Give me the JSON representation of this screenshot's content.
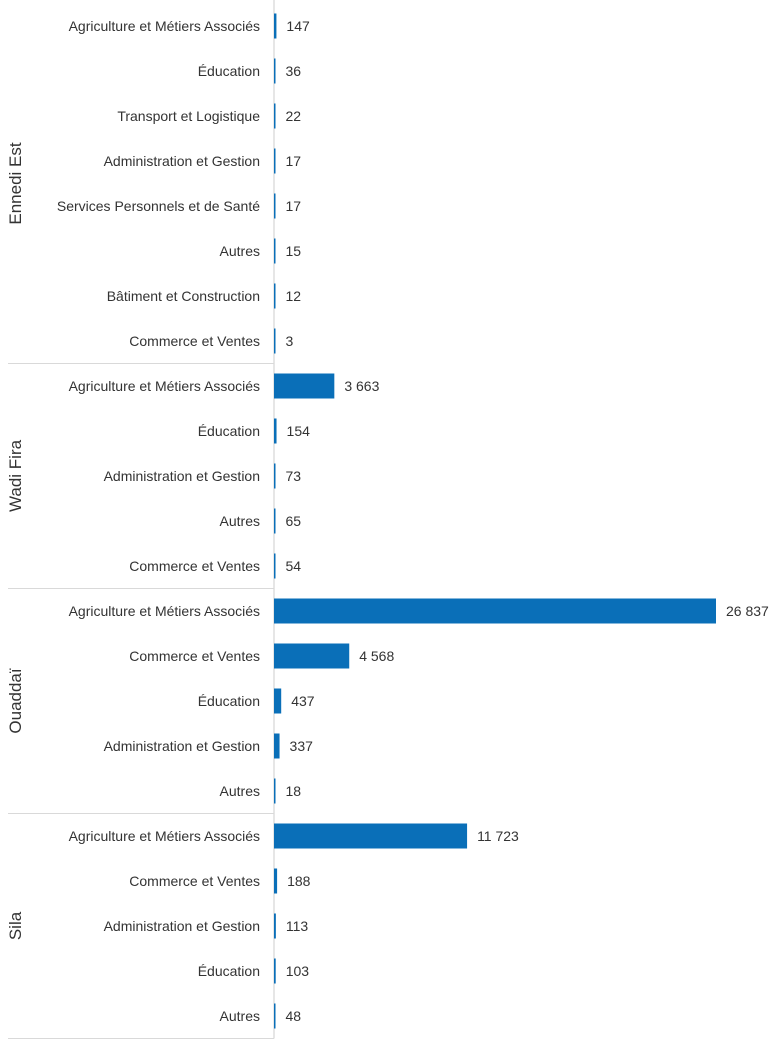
{
  "colors": {
    "bar": "#0a6fb8"
  },
  "chart_data": {
    "type": "bar",
    "orientation": "horizontal",
    "grid": false,
    "groups": [
      {
        "name": "Ennedi Est",
        "categories": [
          "Agriculture et Métiers Associés",
          "Éducation",
          "Transport et Logistique",
          "Administration et Gestion",
          "Services Personnels et de Santé",
          "Autres",
          "Bâtiment et Construction",
          "Commerce et Ventes"
        ],
        "values": [
          147,
          36,
          22,
          17,
          17,
          15,
          12,
          3
        ],
        "value_labels": [
          "147",
          "36",
          "22",
          "17",
          "17",
          "15",
          "12",
          "3"
        ]
      },
      {
        "name": "Wadi Fira",
        "categories": [
          "Agriculture et Métiers Associés",
          "Éducation",
          "Administration et Gestion",
          "Autres",
          "Commerce et Ventes"
        ],
        "values": [
          3663,
          154,
          73,
          65,
          54
        ],
        "value_labels": [
          "3 663",
          "154",
          "73",
          "65",
          "54"
        ]
      },
      {
        "name": "Ouaddaï",
        "categories": [
          "Agriculture et Métiers Associés",
          "Commerce et Ventes",
          "Éducation",
          "Administration et Gestion",
          "Autres"
        ],
        "values": [
          26837,
          4568,
          437,
          337,
          18
        ],
        "value_labels": [
          "26 837",
          "4 568",
          "437",
          "337",
          "18"
        ]
      },
      {
        "name": "Sila",
        "categories": [
          "Agriculture et Métiers Associés",
          "Commerce et Ventes",
          "Administration et Gestion",
          "Éducation",
          "Autres"
        ],
        "values": [
          11723,
          188,
          113,
          103,
          48
        ],
        "value_labels": [
          "11 723",
          "188",
          "113",
          "103",
          "48"
        ]
      }
    ]
  }
}
